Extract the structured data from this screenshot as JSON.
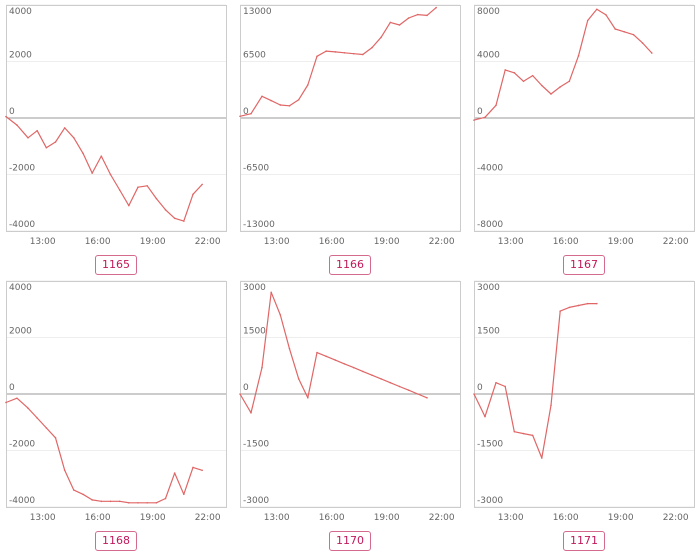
{
  "theme": {
    "line_color": "#e06666",
    "badge_color": "#c2185b",
    "frame_color": "#cccccc",
    "grid_color": "#eeeeee",
    "zero_color": "#999999"
  },
  "chart_data": [
    {
      "type": "line",
      "id": "1165",
      "label": "1165",
      "ylim": [
        -4000,
        4000
      ],
      "yticks": [
        4000,
        2000,
        0,
        -2000,
        -4000
      ],
      "xlim": [
        11,
        23
      ],
      "xticks": [
        "13:00",
        "16:00",
        "19:00",
        "22:00"
      ],
      "grid": true,
      "x": [
        11.0,
        11.6,
        12.2,
        12.7,
        13.2,
        13.7,
        14.2,
        14.7,
        15.2,
        15.7,
        16.2,
        16.7,
        17.2,
        17.7,
        18.2,
        18.7,
        19.2,
        19.7,
        20.2,
        20.7,
        21.2,
        21.7
      ],
      "y": [
        50,
        -250,
        -700,
        -450,
        -1050,
        -850,
        -350,
        -700,
        -1250,
        -1950,
        -1350,
        -2000,
        -2550,
        -3100,
        -2450,
        -2400,
        -2850,
        -3250,
        -3550,
        -3650,
        -2700,
        -2350
      ]
    },
    {
      "type": "line",
      "id": "1166",
      "label": "1166",
      "ylim": [
        -13000,
        13000
      ],
      "yticks": [
        13000,
        6500,
        0,
        -6500,
        -13000
      ],
      "xlim": [
        11,
        23
      ],
      "xticks": [
        "13:00",
        "16:00",
        "19:00",
        "22:00"
      ],
      "grid": true,
      "x": [
        11.0,
        11.6,
        12.2,
        12.7,
        13.2,
        13.7,
        14.2,
        14.7,
        15.2,
        15.7,
        16.2,
        16.7,
        17.2,
        17.7,
        18.2,
        18.7,
        19.2,
        19.7,
        20.2,
        20.7,
        21.2,
        21.7
      ],
      "y": [
        200,
        500,
        2500,
        2000,
        1500,
        1400,
        2100,
        3800,
        7100,
        7700,
        7600,
        7500,
        7400,
        7300,
        8100,
        9300,
        11000,
        10700,
        11500,
        11900,
        11800,
        12700
      ]
    },
    {
      "type": "line",
      "id": "1167",
      "label": "1167",
      "ylim": [
        -8000,
        8000
      ],
      "yticks": [
        8000,
        4000,
        0,
        -4000,
        -8000
      ],
      "xlim": [
        11,
        23
      ],
      "xticks": [
        "13:00",
        "16:00",
        "19:00",
        "22:00"
      ],
      "grid": true,
      "x": [
        11.0,
        11.6,
        12.2,
        12.7,
        13.2,
        13.7,
        14.2,
        14.7,
        15.2,
        15.7,
        16.2,
        16.7,
        17.2,
        17.7,
        18.2,
        18.7,
        19.2,
        19.7,
        20.2,
        20.7
      ],
      "y": [
        -150,
        50,
        900,
        3400,
        3200,
        2600,
        3000,
        2300,
        1700,
        2200,
        2600,
        4400,
        6900,
        7700,
        7300,
        6300,
        6100,
        5900,
        5300,
        4600
      ]
    },
    {
      "type": "line",
      "id": "1168",
      "label": "1168",
      "ylim": [
        -4000,
        4000
      ],
      "yticks": [
        4000,
        2000,
        0,
        -2000,
        -4000
      ],
      "xlim": [
        11,
        23
      ],
      "xticks": [
        "13:00",
        "16:00",
        "19:00",
        "22:00"
      ],
      "grid": true,
      "x": [
        11.0,
        11.6,
        12.2,
        12.7,
        13.2,
        13.7,
        14.2,
        14.7,
        15.2,
        15.7,
        16.2,
        16.7,
        17.2,
        17.7,
        18.2,
        18.7,
        19.2,
        19.7,
        20.2,
        20.7,
        21.2,
        21.7
      ],
      "y": [
        -300,
        -150,
        -500,
        -850,
        -1200,
        -1550,
        -2700,
        -3400,
        -3550,
        -3750,
        -3800,
        -3800,
        -3800,
        -3850,
        -3850,
        -3850,
        -3850,
        -3700,
        -2800,
        -3550,
        -2600,
        -2700
      ]
    },
    {
      "type": "line",
      "id": "1170",
      "label": "1170",
      "ylim": [
        -3000,
        3000
      ],
      "yticks": [
        3000,
        1500,
        0,
        -1500,
        -3000
      ],
      "xlim": [
        11,
        23
      ],
      "xticks": [
        "13:00",
        "16:00",
        "19:00",
        "22:00"
      ],
      "grid": true,
      "x": [
        11.0,
        11.6,
        12.2,
        12.7,
        13.2,
        13.7,
        14.2,
        14.7,
        15.2,
        15.7,
        16.2,
        16.7,
        17.2,
        17.7,
        18.2,
        18.7,
        19.2,
        19.7,
        20.2,
        20.7,
        21.2
      ],
      "y": [
        0,
        -500,
        700,
        2700,
        2100,
        1200,
        400,
        -100,
        1100,
        1000,
        900,
        800,
        700,
        600,
        500,
        400,
        300,
        200,
        100,
        0,
        -100
      ]
    },
    {
      "type": "line",
      "id": "1171",
      "label": "1171",
      "ylim": [
        -3000,
        3000
      ],
      "yticks": [
        3000,
        1500,
        0,
        -1500,
        -3000
      ],
      "xlim": [
        11,
        23
      ],
      "xticks": [
        "13:00",
        "16:00",
        "19:00",
        "22:00"
      ],
      "grid": true,
      "x": [
        11.0,
        11.6,
        12.2,
        12.7,
        13.2,
        13.7,
        14.2,
        14.7,
        15.2,
        15.7,
        16.2,
        16.7,
        17.2,
        17.7
      ],
      "y": [
        0,
        -600,
        300,
        200,
        -1000,
        -1050,
        -1100,
        -1700,
        -300,
        2200,
        2300,
        2350,
        2400,
        2400
      ]
    }
  ]
}
